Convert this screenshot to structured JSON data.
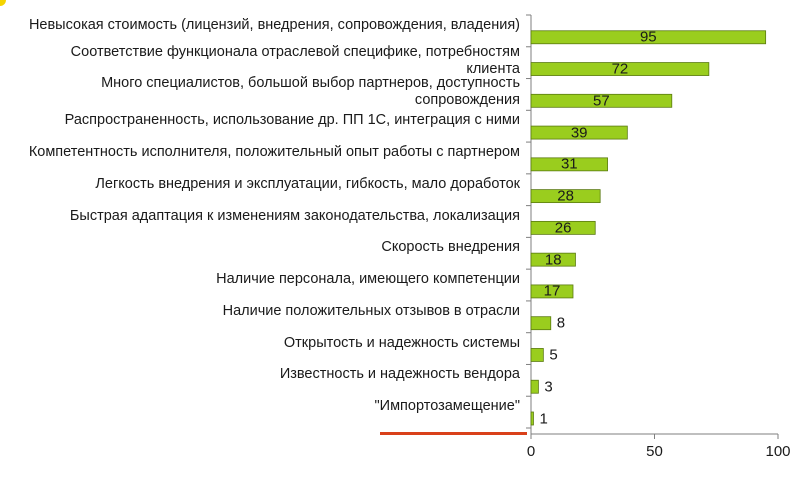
{
  "chart_data": {
    "type": "bar",
    "orientation": "horizontal",
    "categories": [
      "Невысокая стоимость (лицензий, внедрения, сопровождения, владения)",
      "Соответствие функционала отраслевой специфике, потребностям клиента",
      "Много специалистов, большой выбор партнеров, доступность сопровождения",
      "Распространенность, использование др. ПП 1С, интеграция с ними",
      "Компетентность исполнителя, положительный опыт работы с партнером",
      "Легкость внедрения и эксплуатации, гибкость, мало доработок",
      "Быстрая адаптация к изменениям законодательства, локализация",
      "Скорость внедрения",
      "Наличие персонала, имеющего компетенции",
      "Наличие положительных отзывов в отрасли",
      "Открытость и надежность системы",
      "Известность и надежность вендора",
      "\"Импортозамещение\""
    ],
    "values": [
      95,
      72,
      57,
      39,
      31,
      28,
      26,
      18,
      17,
      8,
      5,
      3,
      1
    ],
    "xlim": [
      0,
      100
    ],
    "xticks": [
      "0",
      "50",
      "100"
    ],
    "bar_color": "#9acd1e",
    "bar_edge_color": "#5a7a10",
    "grid": false,
    "legend": "none"
  }
}
